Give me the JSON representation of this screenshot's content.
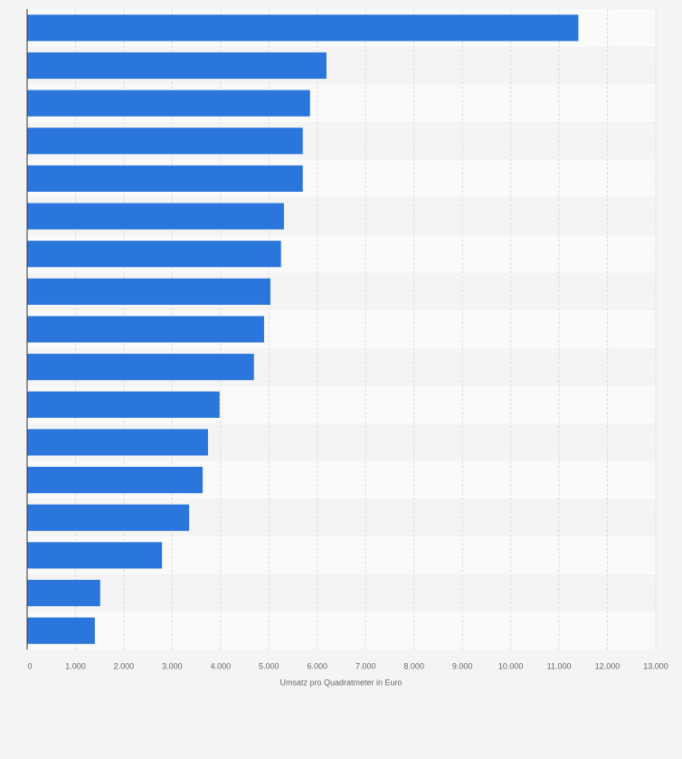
{
  "chart_data": {
    "type": "bar",
    "orientation": "horizontal",
    "xlabel": "Umsatz pro Quadratmeter in Euro",
    "categories": [
      null,
      null,
      null,
      null,
      null,
      null,
      null,
      null,
      null,
      null,
      null,
      null,
      null,
      null,
      null,
      null,
      null
    ],
    "values": [
      11400,
      6190,
      5850,
      5700,
      5700,
      5310,
      5250,
      5030,
      4900,
      4690,
      3980,
      3740,
      3630,
      3350,
      2790,
      1510,
      1400
    ],
    "color": "#2a76dd",
    "xlim": [
      0,
      13000
    ],
    "xticks": [
      0,
      {
        "value": 1000,
        "label": "1.000"
      },
      {
        "value": 2000,
        "label": "2.000"
      },
      {
        "value": 3000,
        "label": "3.000"
      },
      {
        "value": 4000,
        "label": "4.000"
      },
      {
        "value": 5000,
        "label": "5.000"
      },
      {
        "value": 6000,
        "label": "6.000"
      },
      {
        "value": 7000,
        "label": "7.000"
      },
      {
        "value": 8000,
        "label": "8.000"
      },
      {
        "value": 9000,
        "label": "9.000"
      },
      {
        "value": 10000,
        "label": "10.000"
      },
      {
        "value": 11000,
        "label": "11.000"
      },
      {
        "value": 12000,
        "label": "12.000"
      },
      {
        "value": 13000,
        "label": "13.000"
      }
    ],
    "grid": true
  }
}
